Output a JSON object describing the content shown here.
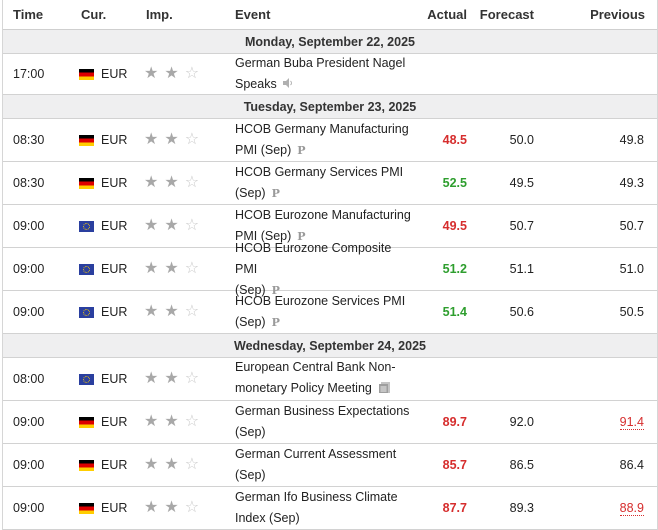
{
  "header": {
    "time": "Time",
    "currency": "Cur.",
    "importance": "Imp.",
    "event": "Event",
    "actual": "Actual",
    "forecast": "Forecast",
    "previous": "Previous"
  },
  "days": [
    {
      "label": "Monday, September 22, 2025"
    },
    {
      "label": "Tuesday, September 23, 2025"
    },
    {
      "label": "Wednesday, September 24, 2025"
    }
  ],
  "events": [
    {
      "time": "17:00",
      "flag": "germany-flag",
      "currency": "EUR",
      "stars": 2,
      "line1": "German Buba President Nagel",
      "line2": "Speaks",
      "icon": "speaker-icon",
      "actual": "",
      "forecast": "",
      "previous": ""
    },
    {
      "time": "08:30",
      "flag": "germany-flag",
      "currency": "EUR",
      "stars": 2,
      "line1": "HCOB Germany Manufacturing",
      "line2": "PMI (Sep)",
      "icon": "preliminary-icon",
      "actual": "48.5",
      "actual_color": "#d62d2d",
      "forecast": "50.0",
      "previous": "49.8"
    },
    {
      "time": "08:30",
      "flag": "germany-flag",
      "currency": "EUR",
      "stars": 2,
      "line1": "HCOB Germany Services PMI",
      "line2": "(Sep)",
      "icon": "preliminary-icon",
      "actual": "52.5",
      "actual_color": "#2e9e2e",
      "forecast": "49.5",
      "previous": "49.3"
    },
    {
      "time": "09:00",
      "flag": "eu-flag",
      "currency": "EUR",
      "stars": 2,
      "line1": "HCOB Eurozone Manufacturing",
      "line2": "PMI (Sep)",
      "icon": "preliminary-icon",
      "actual": "49.5",
      "actual_color": "#d62d2d",
      "forecast": "50.7",
      "previous": "50.7"
    },
    {
      "time": "09:00",
      "flag": "eu-flag",
      "currency": "EUR",
      "stars": 2,
      "line1": "HCOB Eurozone Composite PMI",
      "line2": "(Sep)",
      "icon": "preliminary-icon",
      "actual": "51.2",
      "actual_color": "#2e9e2e",
      "forecast": "51.1",
      "previous": "51.0"
    },
    {
      "time": "09:00",
      "flag": "eu-flag",
      "currency": "EUR",
      "stars": 2,
      "line1": "HCOB Eurozone Services PMI",
      "line2": "(Sep)",
      "icon": "preliminary-icon",
      "actual": "51.4",
      "actual_color": "#2e9e2e",
      "forecast": "50.6",
      "previous": "50.5"
    },
    {
      "time": "08:00",
      "flag": "eu-flag",
      "currency": "EUR",
      "stars": 2,
      "line1": "European Central Bank Non-",
      "line2": "monetary Policy Meeting",
      "icon": "document-icon",
      "actual": "",
      "forecast": "",
      "previous": ""
    },
    {
      "time": "09:00",
      "flag": "germany-flag",
      "currency": "EUR",
      "stars": 2,
      "line1": "German Business Expectations",
      "line2": "(Sep)",
      "icon": "",
      "actual": "89.7",
      "actual_color": "#d62d2d",
      "forecast": "92.0",
      "previous": "91.4",
      "previous_revised": true
    },
    {
      "time": "09:00",
      "flag": "germany-flag",
      "currency": "EUR",
      "stars": 2,
      "line1": "German Current Assessment",
      "line2": "(Sep)",
      "icon": "",
      "actual": "85.7",
      "actual_color": "#d62d2d",
      "forecast": "86.5",
      "previous": "86.4"
    },
    {
      "time": "09:00",
      "flag": "germany-flag",
      "currency": "EUR",
      "stars": 2,
      "line1": "German Ifo Business Climate",
      "line2": "Index (Sep)",
      "icon": "",
      "actual": "87.7",
      "actual_color": "#d62d2d",
      "forecast": "89.3",
      "previous": "88.9",
      "previous_revised": true
    }
  ]
}
